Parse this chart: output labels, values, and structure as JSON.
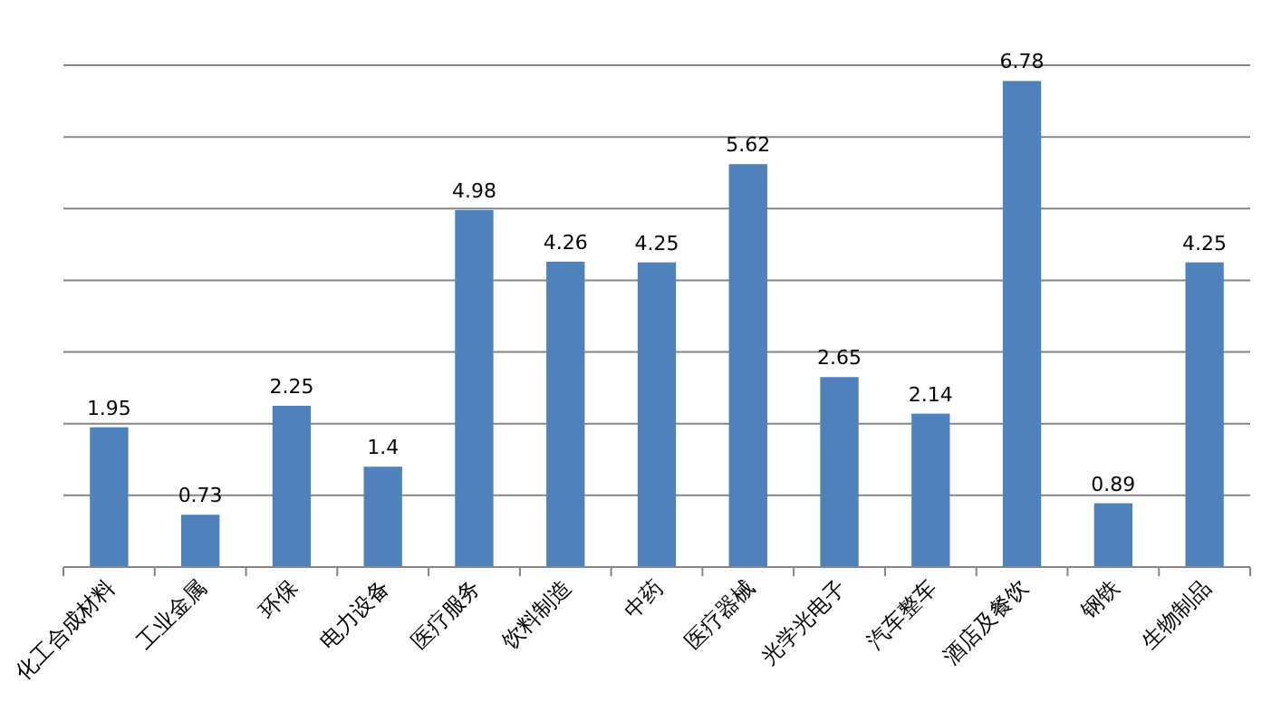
{
  "chart_data": {
    "type": "bar",
    "categories": [
      "化工合成材料",
      "工业金属",
      "环保",
      "电力设备",
      "医疗服务",
      "饮料制造",
      "中药",
      "医疗器械",
      "光学光电子",
      "汽车整车",
      "酒店及餐饮",
      "钢铁",
      "生物制品"
    ],
    "values": [
      1.95,
      0.73,
      2.25,
      1.4,
      4.98,
      4.26,
      4.25,
      5.62,
      2.65,
      2.14,
      6.78,
      0.89,
      4.25
    ],
    "color": "#4f81bd",
    "ylim": [
      0,
      7
    ],
    "yticks": [
      {
        "value": 0,
        "label": null
      },
      {
        "value": 1,
        "label": null
      },
      {
        "value": 2,
        "label": null
      },
      {
        "value": 3,
        "label": null
      },
      {
        "value": 4,
        "label": null
      },
      {
        "value": 5,
        "label": null
      },
      {
        "value": 6,
        "label": null
      },
      {
        "value": 7,
        "label": null
      }
    ],
    "grid": "y",
    "tick_labels": "x",
    "data_labels": true
  }
}
